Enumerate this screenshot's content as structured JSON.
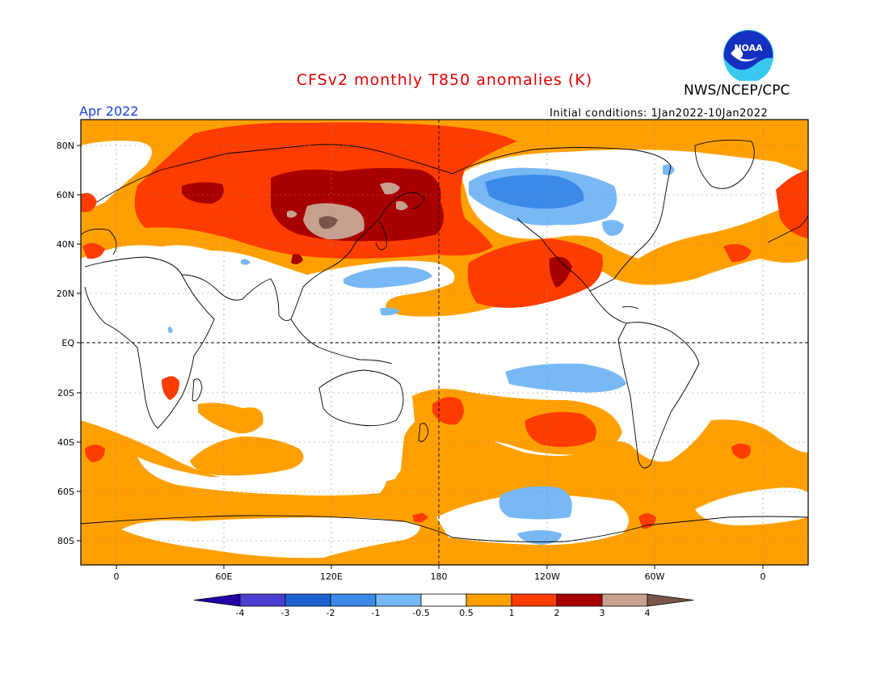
{
  "header": {
    "title": "CFSv2 monthly T850 anomalies (K)",
    "agency": "NWS/NCEP/CPC",
    "month": "Apr 2022",
    "initial_conditions": "Initial conditions: 1Jan2022-10Jan2022"
  },
  "logo": {
    "text": "NOAA",
    "icon": "noaa-logo-icon"
  },
  "axes": {
    "lat_labels": [
      "80N",
      "60N",
      "40N",
      "20N",
      "EQ",
      "20S",
      "40S",
      "60S",
      "80S"
    ],
    "lon_labels": [
      "0",
      "60E",
      "120E",
      "180",
      "120W",
      "60W",
      "0"
    ]
  },
  "colorbar": {
    "labels": [
      "-4",
      "-3",
      "-2",
      "-1",
      "-0.5",
      "0.5",
      "1",
      "2",
      "3",
      "4"
    ],
    "colors": [
      "#2200a8",
      "#4b3fd0",
      "#1e62d2",
      "#3c8ae8",
      "#78b8f5",
      "#ffffff",
      "#ffa000",
      "#ff3c00",
      "#a80000",
      "#c8a090",
      "#7a5448"
    ]
  },
  "colors": {
    "title": "#e00000",
    "month": "#1a3ce0",
    "warm1": "#ffa000",
    "warm2": "#ff3c00",
    "warm3": "#a80000",
    "warm4": "#c8a090",
    "warm5": "#7a5448",
    "cool1": "#78b8f5",
    "cool2": "#3c8ae8"
  }
}
